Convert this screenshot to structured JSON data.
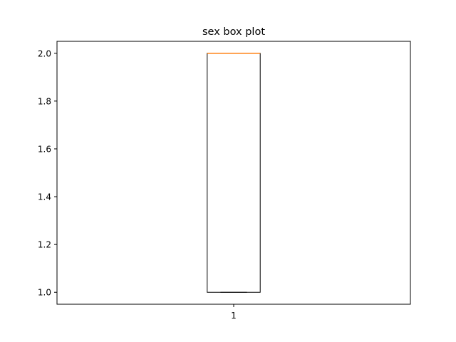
{
  "chart_data": {
    "type": "box",
    "title": "sex box plot",
    "xlabel": "",
    "ylabel": "",
    "categories": [
      "1"
    ],
    "boxes": [
      {
        "name": "1",
        "whisker_low": 1.0,
        "q1": 1.0,
        "median": 2.0,
        "q3": 2.0,
        "whisker_high": 2.0
      }
    ],
    "ylim": [
      0.95,
      2.05
    ],
    "yticks": [
      1.0,
      1.2,
      1.4,
      1.6,
      1.8,
      2.0
    ],
    "ytick_labels": [
      "1.0",
      "1.2",
      "1.4",
      "1.6",
      "1.8",
      "2.0"
    ],
    "xticks": [
      "1"
    ],
    "grid": false,
    "colors": {
      "box": "#000000",
      "median": "#ff7f0e",
      "background": "#ffffff"
    }
  }
}
